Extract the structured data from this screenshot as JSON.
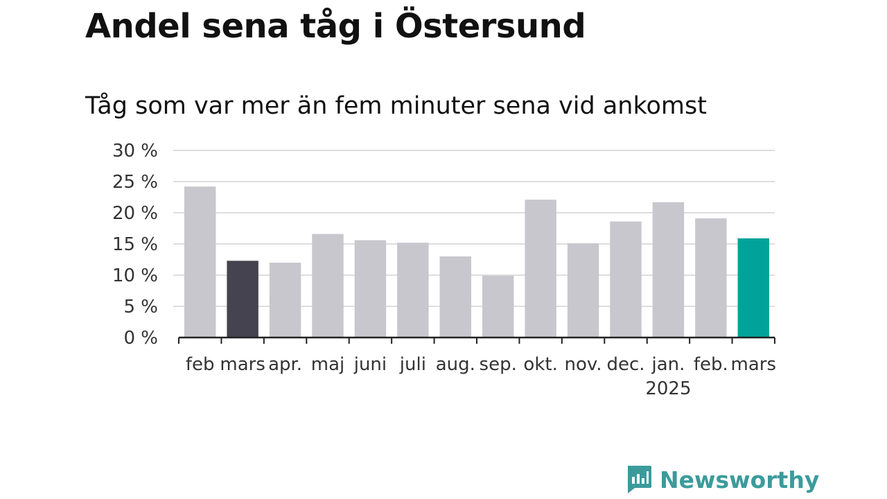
{
  "header": {
    "title": "Andel sena tåg i Östersund",
    "subtitle": "Tåg som var mer än fem minuter sena vid ankomst"
  },
  "brand": {
    "name": "Newsworthy",
    "icon": "newsworthy-logo-icon"
  },
  "colors": {
    "bar_default": "#c8c7cd",
    "bar_previous_year": "#44434f",
    "bar_current": "#00a39a",
    "grid": "#dddddd",
    "axis": "#222222"
  },
  "chart_data": {
    "type": "bar",
    "title": "Andel sena tåg i Östersund",
    "subtitle": "Tåg som var mer än fem minuter sena vid ankomst",
    "categories": [
      "feb",
      "mars",
      "apr.",
      "maj",
      "juni",
      "juli",
      "aug.",
      "sep.",
      "okt.",
      "nov.",
      "dec.",
      "jan.",
      "feb.",
      "mars"
    ],
    "category_sublabels": [
      "",
      "",
      "",
      "",
      "",
      "",
      "",
      "",
      "",
      "",
      "",
      "2025",
      "",
      ""
    ],
    "values": [
      24.2,
      12.3,
      12.0,
      16.6,
      15.6,
      15.2,
      13.0,
      9.9,
      22.1,
      15.1,
      18.6,
      21.7,
      19.1,
      15.9
    ],
    "highlight": [
      "default",
      "previous_year",
      "default",
      "default",
      "default",
      "default",
      "default",
      "default",
      "default",
      "default",
      "default",
      "default",
      "default",
      "current"
    ],
    "ylim": [
      0,
      30
    ],
    "yticks": [
      0,
      5,
      10,
      15,
      20,
      25,
      30
    ],
    "ytick_labels": [
      "0 %",
      "5 %",
      "10 %",
      "15 %",
      "20 %",
      "25 %",
      "30 %"
    ],
    "xlabel": "",
    "ylabel": "",
    "grid": true
  }
}
